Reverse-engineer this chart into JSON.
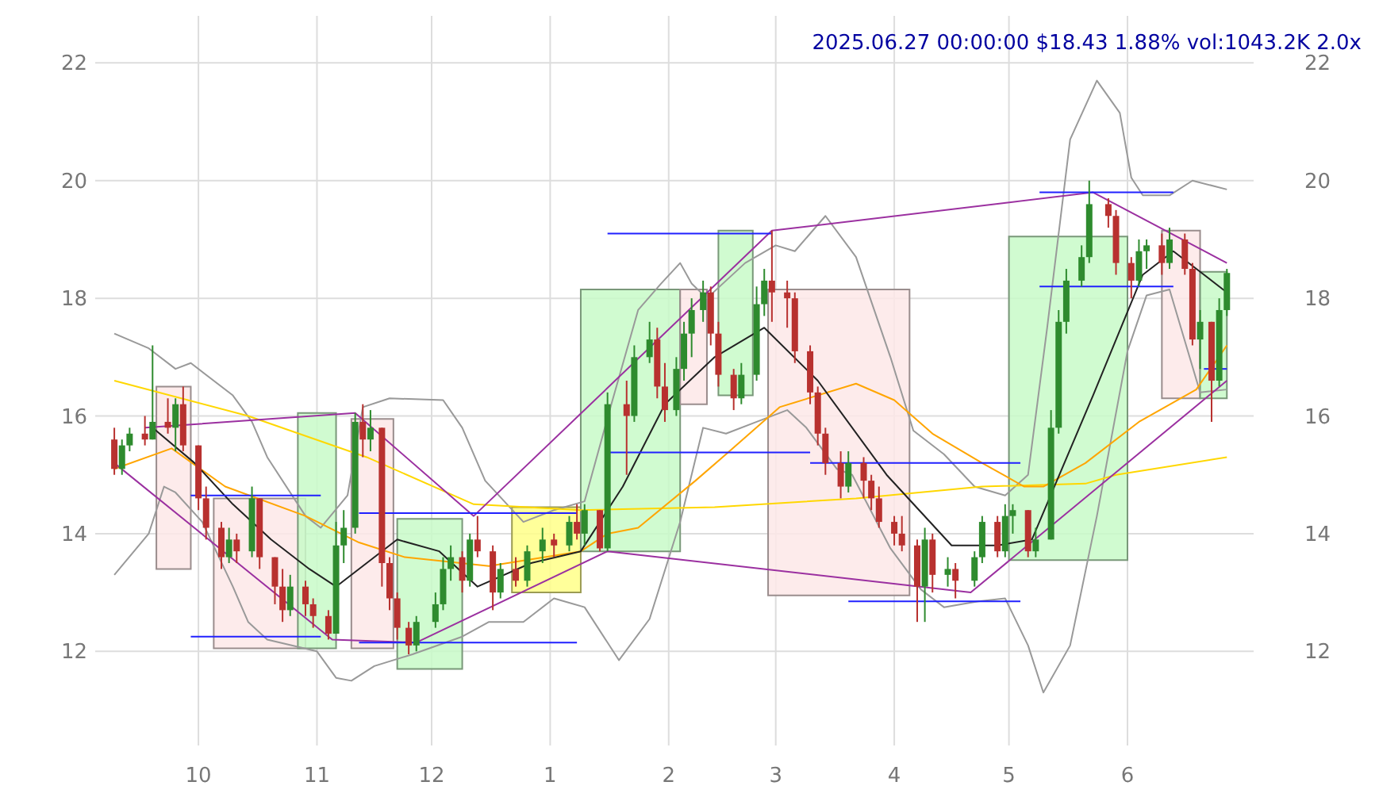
{
  "chart_data": {
    "type": "candlestick",
    "title": "2025.06.27 00:00:00 $18.43 1.88% vol:1043.2K 2.0x",
    "grid": true,
    "xlim": [
      "2024-09-04",
      "2025-07-04"
    ],
    "xticks": [
      {
        "value": "2024-10-01",
        "label": "10"
      },
      {
        "value": "2024-11-01",
        "label": "11"
      },
      {
        "value": "2024-12-01",
        "label": "12"
      },
      {
        "value": "2025-01-01",
        "label": "1"
      },
      {
        "value": "2025-02-01",
        "label": "2"
      },
      {
        "value": "2025-03-01",
        "label": "3"
      },
      {
        "value": "2025-04-01",
        "label": "4"
      },
      {
        "value": "2025-05-01",
        "label": "5"
      },
      {
        "value": "2025-06-01",
        "label": "6"
      }
    ],
    "ylim": [
      10.4,
      22.8
    ],
    "yticks": [
      12,
      14,
      16,
      18,
      20,
      22
    ],
    "y2lim": [
      10.4,
      22.8
    ],
    "y2ticks": [
      12,
      14,
      16,
      18,
      20,
      22
    ],
    "series": [
      {
        "type": "area",
        "x": [
          "2024-09-20",
          "2024-09-20",
          "2024-09-29",
          "2024-09-29"
        ],
        "values": [
          13.4,
          16.5,
          16.5,
          13.4
        ],
        "color": "#fde8e8"
      },
      {
        "type": "area",
        "x": [
          "2024-10-05",
          "2024-10-05",
          "2024-10-29",
          "2024-10-29"
        ],
        "values": [
          12.05,
          14.6,
          14.6,
          12.05
        ],
        "color": "#fde8e8"
      },
      {
        "type": "area",
        "x": [
          "2024-10-27",
          "2024-10-27",
          "2024-11-06",
          "2024-11-06"
        ],
        "values": [
          12.05,
          16.05,
          16.05,
          12.05
        ],
        "color": "#c8fac8"
      },
      {
        "type": "area",
        "x": [
          "2024-11-10",
          "2024-11-10",
          "2024-11-21",
          "2024-11-21"
        ],
        "values": [
          12.05,
          15.95,
          15.95,
          12.05
        ],
        "color": "#fde8e8"
      },
      {
        "type": "area",
        "x": [
          "2024-11-22",
          "2024-11-22",
          "2024-12-09",
          "2024-12-09"
        ],
        "values": [
          11.7,
          14.25,
          14.25,
          11.7
        ],
        "color": "#c8fac8"
      },
      {
        "type": "area",
        "x": [
          "2024-12-22",
          "2024-12-22",
          "2025-01-09",
          "2025-01-09"
        ],
        "values": [
          13.0,
          14.45,
          14.45,
          13.0
        ],
        "color": "#ffff88"
      },
      {
        "type": "area",
        "x": [
          "2025-01-09",
          "2025-01-09",
          "2025-02-04",
          "2025-02-04"
        ],
        "values": [
          13.7,
          18.15,
          18.15,
          13.7
        ],
        "color": "#c8fac8"
      },
      {
        "type": "area",
        "x": [
          "2025-02-04",
          "2025-02-04",
          "2025-02-11",
          "2025-02-11"
        ],
        "values": [
          16.2,
          18.15,
          18.15,
          16.2
        ],
        "color": "#fde8e8"
      },
      {
        "type": "area",
        "x": [
          "2025-02-14",
          "2025-02-14",
          "2025-02-23",
          "2025-02-23"
        ],
        "values": [
          16.35,
          19.15,
          19.15,
          16.35
        ],
        "color": "#c8fac8"
      },
      {
        "type": "area",
        "x": [
          "2025-02-27",
          "2025-02-27",
          "2025-04-05",
          "2025-04-05"
        ],
        "values": [
          12.95,
          18.15,
          18.15,
          12.95
        ],
        "color": "#fde8e8"
      },
      {
        "type": "area",
        "x": [
          "2025-05-01",
          "2025-05-01",
          "2025-06-01",
          "2025-06-01"
        ],
        "values": [
          13.55,
          19.05,
          19.05,
          13.55
        ],
        "color": "#c8fac8"
      },
      {
        "type": "area",
        "x": [
          "2025-06-10",
          "2025-06-10",
          "2025-06-20",
          "2025-06-20"
        ],
        "values": [
          16.3,
          19.15,
          19.15,
          16.3
        ],
        "color": "#fde8e8"
      },
      {
        "type": "area",
        "x": [
          "2025-06-20",
          "2025-06-20",
          "2025-06-27",
          "2025-06-27"
        ],
        "values": [
          16.3,
          18.45,
          18.45,
          16.3
        ],
        "color": "#c8fac8"
      },
      {
        "type": "line",
        "color": "#999999",
        "x": [
          "2024-09-09",
          "2024-09-18",
          "2024-09-25",
          "2024-09-29",
          "2024-10-10",
          "2024-10-15",
          "2024-10-19",
          "2024-10-29",
          "2024-11-02",
          "2024-11-09",
          "2024-11-13",
          "2024-11-20",
          "2024-12-04",
          "2024-12-09",
          "2024-12-15",
          "2024-12-25",
          "2025-01-02",
          "2025-01-10",
          "2025-01-17",
          "2025-01-24",
          "2025-01-30",
          "2025-02-04",
          "2025-02-07",
          "2025-02-11",
          "2025-02-21",
          "2025-03-01",
          "2025-03-06",
          "2025-03-14",
          "2025-03-22",
          "2025-03-31",
          "2025-04-06",
          "2025-04-14",
          "2025-04-22",
          "2025-04-30",
          "2025-05-06",
          "2025-05-11",
          "2025-05-17",
          "2025-05-24",
          "2025-05-30",
          "2025-06-02",
          "2025-06-05",
          "2025-06-12",
          "2025-06-18",
          "2025-06-27"
        ],
        "values": [
          17.4,
          17.15,
          16.8,
          16.9,
          16.35,
          15.9,
          15.3,
          14.3,
          14.1,
          14.65,
          16.15,
          16.3,
          16.27,
          15.8,
          14.9,
          14.2,
          14.4,
          14.55,
          16.2,
          17.8,
          18.25,
          18.6,
          18.25,
          18.0,
          18.6,
          18.9,
          18.8,
          19.4,
          18.7,
          17.0,
          15.75,
          15.35,
          14.8,
          14.65,
          15.0,
          17.5,
          20.7,
          21.7,
          21.15,
          20.05,
          19.75,
          19.75,
          20.0,
          19.85
        ]
      },
      {
        "type": "line",
        "color": "#999999",
        "x": [
          "2024-09-09",
          "2024-09-18",
          "2024-09-22",
          "2024-09-25",
          "2024-10-02",
          "2024-10-10",
          "2024-10-14",
          "2024-10-19",
          "2024-11-01",
          "2024-11-06",
          "2024-11-10",
          "2024-11-16",
          "2024-11-26",
          "2024-12-09",
          "2024-12-16",
          "2024-12-25",
          "2025-01-02",
          "2025-01-10",
          "2025-01-19",
          "2025-01-27",
          "2025-02-04",
          "2025-02-10",
          "2025-02-16",
          "2025-02-24",
          "2025-03-04",
          "2025-03-09",
          "2025-03-17",
          "2025-03-21",
          "2025-03-31",
          "2025-04-08",
          "2025-04-14",
          "2025-04-23",
          "2025-04-30",
          "2025-05-06",
          "2025-05-10",
          "2025-05-17",
          "2025-05-24",
          "2025-06-01",
          "2025-06-06",
          "2025-06-12",
          "2025-06-20",
          "2025-06-27"
        ],
        "values": [
          13.3,
          14.0,
          14.8,
          14.7,
          14.2,
          13.1,
          12.5,
          12.2,
          12.0,
          11.55,
          11.5,
          11.75,
          11.95,
          12.25,
          12.5,
          12.5,
          12.9,
          12.75,
          11.85,
          12.55,
          14.2,
          15.8,
          15.7,
          15.9,
          16.1,
          15.8,
          15.1,
          15.0,
          13.75,
          13.05,
          12.75,
          12.85,
          12.9,
          12.1,
          11.3,
          12.1,
          14.3,
          17.1,
          18.05,
          18.15,
          16.4,
          16.45
        ]
      },
      {
        "type": "line",
        "color": "#ffd700",
        "x": [
          "2024-09-09",
          "2024-10-14",
          "2024-11-14",
          "2024-12-12",
          "2025-01-09",
          "2025-02-13",
          "2025-03-22",
          "2025-04-24",
          "2025-05-21",
          "2025-05-29",
          "2025-06-27"
        ],
        "values": [
          16.6,
          16.0,
          15.3,
          14.5,
          14.4,
          14.45,
          14.6,
          14.8,
          14.85,
          15.0,
          15.3
        ]
      },
      {
        "type": "line",
        "color": "#ffa500",
        "x": [
          "2024-09-09",
          "2024-09-24",
          "2024-10-08",
          "2024-10-29",
          "2024-11-12",
          "2024-11-24",
          "2024-12-16",
          "2025-01-09",
          "2025-01-16",
          "2025-01-24",
          "2025-02-08",
          "2025-02-16",
          "2025-03-02",
          "2025-03-22",
          "2025-04-01",
          "2025-04-11",
          "2025-04-24",
          "2025-05-05",
          "2025-05-10",
          "2025-05-21",
          "2025-06-04",
          "2025-06-19",
          "2025-06-27"
        ],
        "values": [
          15.1,
          15.45,
          14.8,
          14.3,
          13.85,
          13.6,
          13.45,
          13.7,
          14.0,
          14.1,
          14.9,
          15.35,
          16.15,
          16.55,
          16.27,
          15.7,
          15.2,
          14.8,
          14.8,
          15.2,
          15.9,
          16.45,
          17.2
        ]
      },
      {
        "type": "line",
        "color": "#222222",
        "x": [
          "2024-09-19",
          "2024-09-30",
          "2024-10-10",
          "2024-10-20",
          "2024-10-30",
          "2024-11-06",
          "2024-11-14",
          "2024-11-22",
          "2024-12-03",
          "2024-12-13",
          "2024-12-27",
          "2025-01-09",
          "2025-01-20",
          "2025-01-31",
          "2025-02-13",
          "2025-02-26",
          "2025-03-12",
          "2025-03-30",
          "2025-04-16",
          "2025-04-28",
          "2025-05-07",
          "2025-05-23",
          "2025-06-05",
          "2025-06-13",
          "2025-06-27"
        ],
        "values": [
          15.8,
          15.2,
          14.5,
          13.9,
          13.4,
          13.1,
          13.5,
          13.9,
          13.7,
          13.1,
          13.5,
          13.7,
          14.8,
          16.2,
          17.0,
          17.5,
          16.6,
          15.0,
          13.8,
          13.8,
          13.9,
          16.35,
          18.4,
          18.8,
          18.1
        ]
      },
      {
        "type": "line",
        "color": "#9b30a0",
        "x": [
          "2024-09-17",
          "2024-11-11",
          "2024-12-12",
          "2025-02-28",
          "2025-05-23",
          "2025-06-27"
        ],
        "values": [
          15.8,
          16.05,
          14.3,
          19.15,
          19.8,
          18.6
        ]
      },
      {
        "type": "line",
        "color": "#9b30a0",
        "x": [
          "2024-09-09",
          "2024-11-05",
          "2024-11-27",
          "2025-01-16",
          "2025-04-21",
          "2025-06-27"
        ],
        "values": [
          15.2,
          12.2,
          12.15,
          13.7,
          13.0,
          16.6
        ]
      },
      {
        "type": "line",
        "color": "#2020ff",
        "x": [
          "2024-09-29",
          "2024-11-02"
        ],
        "values": [
          14.65,
          14.65
        ]
      },
      {
        "type": "line",
        "color": "#2020ff",
        "x": [
          "2024-09-29",
          "2024-11-02"
        ],
        "values": [
          12.25,
          12.25
        ]
      },
      {
        "type": "line",
        "color": "#2020ff",
        "x": [
          "2024-11-12",
          "2025-01-08"
        ],
        "values": [
          14.35,
          14.35
        ]
      },
      {
        "type": "line",
        "color": "#2020ff",
        "x": [
          "2024-11-12",
          "2025-01-08"
        ],
        "values": [
          12.15,
          12.15
        ]
      },
      {
        "type": "line",
        "color": "#2020ff",
        "x": [
          "2025-01-16",
          "2025-02-28"
        ],
        "values": [
          19.1,
          19.1
        ]
      },
      {
        "type": "line",
        "color": "#2020ff",
        "x": [
          "2025-01-16",
          "2025-03-10"
        ],
        "values": [
          15.38,
          15.38
        ]
      },
      {
        "type": "line",
        "color": "#2020ff",
        "x": [
          "2025-03-10",
          "2025-05-04"
        ],
        "values": [
          15.2,
          15.2
        ]
      },
      {
        "type": "line",
        "color": "#2020ff",
        "x": [
          "2025-03-20",
          "2025-05-04"
        ],
        "values": [
          12.85,
          12.85
        ]
      },
      {
        "type": "line",
        "color": "#2020ff",
        "x": [
          "2025-05-09",
          "2025-06-13"
        ],
        "values": [
          19.8,
          19.8
        ]
      },
      {
        "type": "line",
        "color": "#2020ff",
        "x": [
          "2025-05-09",
          "2025-06-13"
        ],
        "values": [
          18.2,
          18.2
        ]
      },
      {
        "type": "line",
        "color": "#2020ff",
        "x": [
          "2025-06-21",
          "2025-06-27"
        ],
        "values": [
          16.8,
          16.8
        ]
      },
      {
        "type": "candlestick",
        "x": [
          "2024-09-09",
          "2024-09-11",
          "2024-09-13",
          "2024-09-17",
          "2024-09-19",
          "2024-09-23",
          "2024-09-25",
          "2024-09-27",
          "2024-10-01",
          "2024-10-03",
          "2024-10-07",
          "2024-10-09",
          "2024-10-11",
          "2024-10-15",
          "2024-10-17",
          "2024-10-21",
          "2024-10-23",
          "2024-10-25",
          "2024-10-29",
          "2024-10-31",
          "2024-11-04",
          "2024-11-06",
          "2024-11-08",
          "2024-11-11",
          "2024-11-13",
          "2024-11-15",
          "2024-11-18",
          "2024-11-20",
          "2024-11-22",
          "2024-11-25",
          "2024-11-27",
          "2024-12-02",
          "2024-12-04",
          "2024-12-06",
          "2024-12-09",
          "2024-12-11",
          "2024-12-13",
          "2024-12-17",
          "2024-12-19",
          "2024-12-23",
          "2024-12-26",
          "2024-12-30",
          "2025-01-02",
          "2025-01-06",
          "2025-01-08",
          "2025-01-10",
          "2025-01-14",
          "2025-01-16",
          "2025-01-21",
          "2025-01-23",
          "2025-01-27",
          "2025-01-29",
          "2025-01-31",
          "2025-02-03",
          "2025-02-05",
          "2025-02-07",
          "2025-02-10",
          "2025-02-12",
          "2025-02-14",
          "2025-02-18",
          "2025-02-20",
          "2025-02-24",
          "2025-02-26",
          "2025-02-28",
          "2025-03-04",
          "2025-03-06",
          "2025-03-10",
          "2025-03-12",
          "2025-03-14",
          "2025-03-18",
          "2025-03-20",
          "2025-03-24",
          "2025-03-26",
          "2025-03-28",
          "2025-04-01",
          "2025-04-03",
          "2025-04-07",
          "2025-04-09",
          "2025-04-11",
          "2025-04-15",
          "2025-04-17",
          "2025-04-22",
          "2025-04-24",
          "2025-04-28",
          "2025-04-30",
          "2025-05-02",
          "2025-05-06",
          "2025-05-08",
          "2025-05-12",
          "2025-05-14",
          "2025-05-16",
          "2025-05-20",
          "2025-05-22",
          "2025-05-27",
          "2025-05-29",
          "2025-06-02",
          "2025-06-04",
          "2025-06-06",
          "2025-06-10",
          "2025-06-12",
          "2025-06-16",
          "2025-06-18",
          "2025-06-20",
          "2025-06-23",
          "2025-06-25",
          "2025-06-27"
        ],
        "ohlc": [
          [
            15.6,
            15.8,
            15.0,
            15.1
          ],
          [
            15.1,
            15.6,
            15.0,
            15.5
          ],
          [
            15.5,
            15.8,
            15.4,
            15.7
          ],
          [
            15.7,
            16.0,
            15.5,
            15.6
          ],
          [
            15.6,
            17.2,
            15.6,
            15.9
          ],
          [
            15.9,
            16.3,
            15.7,
            15.8
          ],
          [
            15.8,
            16.3,
            15.4,
            16.2
          ],
          [
            16.2,
            16.5,
            15.4,
            15.5
          ],
          [
            15.5,
            15.5,
            14.4,
            14.6
          ],
          [
            14.6,
            14.8,
            13.9,
            14.1
          ],
          [
            14.1,
            14.2,
            13.4,
            13.6
          ],
          [
            13.6,
            14.1,
            13.5,
            13.9
          ],
          [
            13.9,
            14.0,
            13.5,
            13.7
          ],
          [
            13.7,
            14.8,
            13.6,
            14.6
          ],
          [
            14.6,
            14.6,
            13.4,
            13.6
          ],
          [
            13.6,
            13.6,
            12.8,
            13.1
          ],
          [
            13.1,
            13.4,
            12.5,
            12.7
          ],
          [
            12.7,
            13.3,
            12.6,
            13.1
          ],
          [
            13.1,
            13.2,
            12.6,
            12.8
          ],
          [
            12.8,
            12.9,
            12.4,
            12.6
          ],
          [
            12.6,
            12.7,
            12.2,
            12.3
          ],
          [
            12.3,
            14.2,
            12.3,
            13.8
          ],
          [
            13.8,
            14.4,
            13.5,
            14.1
          ],
          [
            14.1,
            16.05,
            14.0,
            15.9
          ],
          [
            15.9,
            16.2,
            15.3,
            15.6
          ],
          [
            15.6,
            16.1,
            15.4,
            15.8
          ],
          [
            15.8,
            15.8,
            13.1,
            13.5
          ],
          [
            13.5,
            13.6,
            12.7,
            12.9
          ],
          [
            12.9,
            13.0,
            12.2,
            12.4
          ],
          [
            12.4,
            12.5,
            11.95,
            12.1
          ],
          [
            12.1,
            12.6,
            12.0,
            12.5
          ],
          [
            12.5,
            13.0,
            12.4,
            12.8
          ],
          [
            12.8,
            13.6,
            12.7,
            13.4
          ],
          [
            13.4,
            13.8,
            13.2,
            13.6
          ],
          [
            13.6,
            13.7,
            13.0,
            13.2
          ],
          [
            13.2,
            14.0,
            13.1,
            13.9
          ],
          [
            13.9,
            14.3,
            13.6,
            13.7
          ],
          [
            13.7,
            13.8,
            12.7,
            13.0
          ],
          [
            13.0,
            13.5,
            12.9,
            13.4
          ],
          [
            13.4,
            13.6,
            13.1,
            13.2
          ],
          [
            13.2,
            13.8,
            13.1,
            13.7
          ],
          [
            13.7,
            14.1,
            13.5,
            13.9
          ],
          [
            13.9,
            14.0,
            13.6,
            13.8
          ],
          [
            13.8,
            14.3,
            13.7,
            14.2
          ],
          [
            14.2,
            14.5,
            13.9,
            14.0
          ],
          [
            14.0,
            14.5,
            13.8,
            14.4
          ],
          [
            14.4,
            14.4,
            13.7,
            13.75
          ],
          [
            13.75,
            16.4,
            13.7,
            16.2
          ],
          [
            16.2,
            16.6,
            15.0,
            16.0
          ],
          [
            16.0,
            17.2,
            15.9,
            17.0
          ],
          [
            17.0,
            17.6,
            16.9,
            17.3
          ],
          [
            17.3,
            17.5,
            16.3,
            16.5
          ],
          [
            16.5,
            16.9,
            15.9,
            16.1
          ],
          [
            16.1,
            17.0,
            16.0,
            16.8
          ],
          [
            16.8,
            17.6,
            16.6,
            17.4
          ],
          [
            17.4,
            18.0,
            17.0,
            17.8
          ],
          [
            17.8,
            18.3,
            17.6,
            18.1
          ],
          [
            18.1,
            18.2,
            17.2,
            17.4
          ],
          [
            17.4,
            17.6,
            16.5,
            16.7
          ],
          [
            16.7,
            16.8,
            16.1,
            16.3
          ],
          [
            16.3,
            16.9,
            16.2,
            16.7
          ],
          [
            16.7,
            18.2,
            16.6,
            17.9
          ],
          [
            17.9,
            18.5,
            17.7,
            18.3
          ],
          [
            18.3,
            19.15,
            17.6,
            18.1
          ],
          [
            18.1,
            18.3,
            17.5,
            18.0
          ],
          [
            18.0,
            18.1,
            16.9,
            17.1
          ],
          [
            17.1,
            17.2,
            16.2,
            16.4
          ],
          [
            16.4,
            16.5,
            15.5,
            15.7
          ],
          [
            15.7,
            15.8,
            15.0,
            15.2
          ],
          [
            15.2,
            15.4,
            14.6,
            14.8
          ],
          [
            14.8,
            15.4,
            14.7,
            15.2
          ],
          [
            15.2,
            15.3,
            14.6,
            14.9
          ],
          [
            14.9,
            15.0,
            14.4,
            14.6
          ],
          [
            14.6,
            14.8,
            14.1,
            14.2
          ],
          [
            14.2,
            14.3,
            13.8,
            14.0
          ],
          [
            14.0,
            14.3,
            13.7,
            13.8
          ],
          [
            13.8,
            13.9,
            12.5,
            13.1
          ],
          [
            13.1,
            14.1,
            12.5,
            13.9
          ],
          [
            13.9,
            14.0,
            13.0,
            13.3
          ],
          [
            13.3,
            13.6,
            13.1,
            13.4
          ],
          [
            13.4,
            13.5,
            12.9,
            13.2
          ],
          [
            13.2,
            13.7,
            13.1,
            13.6
          ],
          [
            13.6,
            14.3,
            13.5,
            14.2
          ],
          [
            14.2,
            14.3,
            13.6,
            13.7
          ],
          [
            13.7,
            14.5,
            13.6,
            14.3
          ],
          [
            14.3,
            14.5,
            14.0,
            14.4
          ],
          [
            14.4,
            14.4,
            13.6,
            13.7
          ],
          [
            13.7,
            14.1,
            13.6,
            13.9
          ],
          [
            13.9,
            16.1,
            13.9,
            15.8
          ],
          [
            15.8,
            17.8,
            15.7,
            17.6
          ],
          [
            17.6,
            18.5,
            17.4,
            18.3
          ],
          [
            18.3,
            18.9,
            18.2,
            18.7
          ],
          [
            18.7,
            20.0,
            18.6,
            19.6
          ],
          [
            19.6,
            19.7,
            19.2,
            19.4
          ],
          [
            19.4,
            19.5,
            18.4,
            18.6
          ],
          [
            18.6,
            18.7,
            18.0,
            18.3
          ],
          [
            18.3,
            19.0,
            18.2,
            18.8
          ],
          [
            18.8,
            19.0,
            18.5,
            18.9
          ],
          [
            18.9,
            19.1,
            18.4,
            18.6
          ],
          [
            18.6,
            19.2,
            18.5,
            19.0
          ],
          [
            19.0,
            19.1,
            18.4,
            18.5
          ],
          [
            18.5,
            18.6,
            17.2,
            17.3
          ],
          [
            17.3,
            17.8,
            16.8,
            17.6
          ],
          [
            17.6,
            17.6,
            15.9,
            16.6
          ],
          [
            16.6,
            18.0,
            16.5,
            17.8
          ],
          [
            17.8,
            18.5,
            17.7,
            18.43
          ]
        ],
        "colors": [
          "#b8312f",
          "#2e8b2e",
          "#2e8b2e",
          "#b8312f",
          "#2e8b2e",
          "#b8312f",
          "#2e8b2e",
          "#b8312f",
          "#b8312f",
          "#b8312f",
          "#b8312f",
          "#2e8b2e",
          "#b8312f",
          "#2e8b2e",
          "#b8312f",
          "#b8312f",
          "#b8312f",
          "#2e8b2e",
          "#b8312f",
          "#b8312f",
          "#b8312f",
          "#2e8b2e",
          "#2e8b2e",
          "#2e8b2e",
          "#b8312f",
          "#2e8b2e",
          "#b8312f",
          "#b8312f",
          "#b8312f",
          "#b8312f",
          "#2e8b2e",
          "#2e8b2e",
          "#2e8b2e",
          "#2e8b2e",
          "#b8312f",
          "#2e8b2e",
          "#b8312f",
          "#b8312f",
          "#2e8b2e",
          "#b8312f",
          "#2e8b2e",
          "#2e8b2e",
          "#b8312f",
          "#2e8b2e",
          "#b8312f",
          "#2e8b2e",
          "#b8312f",
          "#2e8b2e",
          "#b8312f",
          "#2e8b2e",
          "#2e8b2e",
          "#b8312f",
          "#b8312f",
          "#2e8b2e",
          "#2e8b2e",
          "#2e8b2e",
          "#2e8b2e",
          "#b8312f",
          "#b8312f",
          "#b8312f",
          "#2e8b2e",
          "#2e8b2e",
          "#2e8b2e",
          "#b8312f",
          "#b8312f",
          "#b8312f",
          "#b8312f",
          "#b8312f",
          "#b8312f",
          "#b8312f",
          "#2e8b2e",
          "#b8312f",
          "#b8312f",
          "#b8312f",
          "#b8312f",
          "#b8312f",
          "#b8312f",
          "#2e8b2e",
          "#b8312f",
          "#2e8b2e",
          "#b8312f",
          "#2e8b2e",
          "#2e8b2e",
          "#b8312f",
          "#2e8b2e",
          "#2e8b2e",
          "#b8312f",
          "#2e8b2e",
          "#2e8b2e",
          "#2e8b2e",
          "#2e8b2e",
          "#2e8b2e",
          "#2e8b2e",
          "#b8312f",
          "#b8312f",
          "#b8312f",
          "#2e8b2e",
          "#2e8b2e",
          "#b8312f",
          "#2e8b2e",
          "#b8312f",
          "#b8312f",
          "#2e8b2e",
          "#b8312f",
          "#2e8b2e",
          "#2e8b2e"
        ]
      }
    ]
  }
}
